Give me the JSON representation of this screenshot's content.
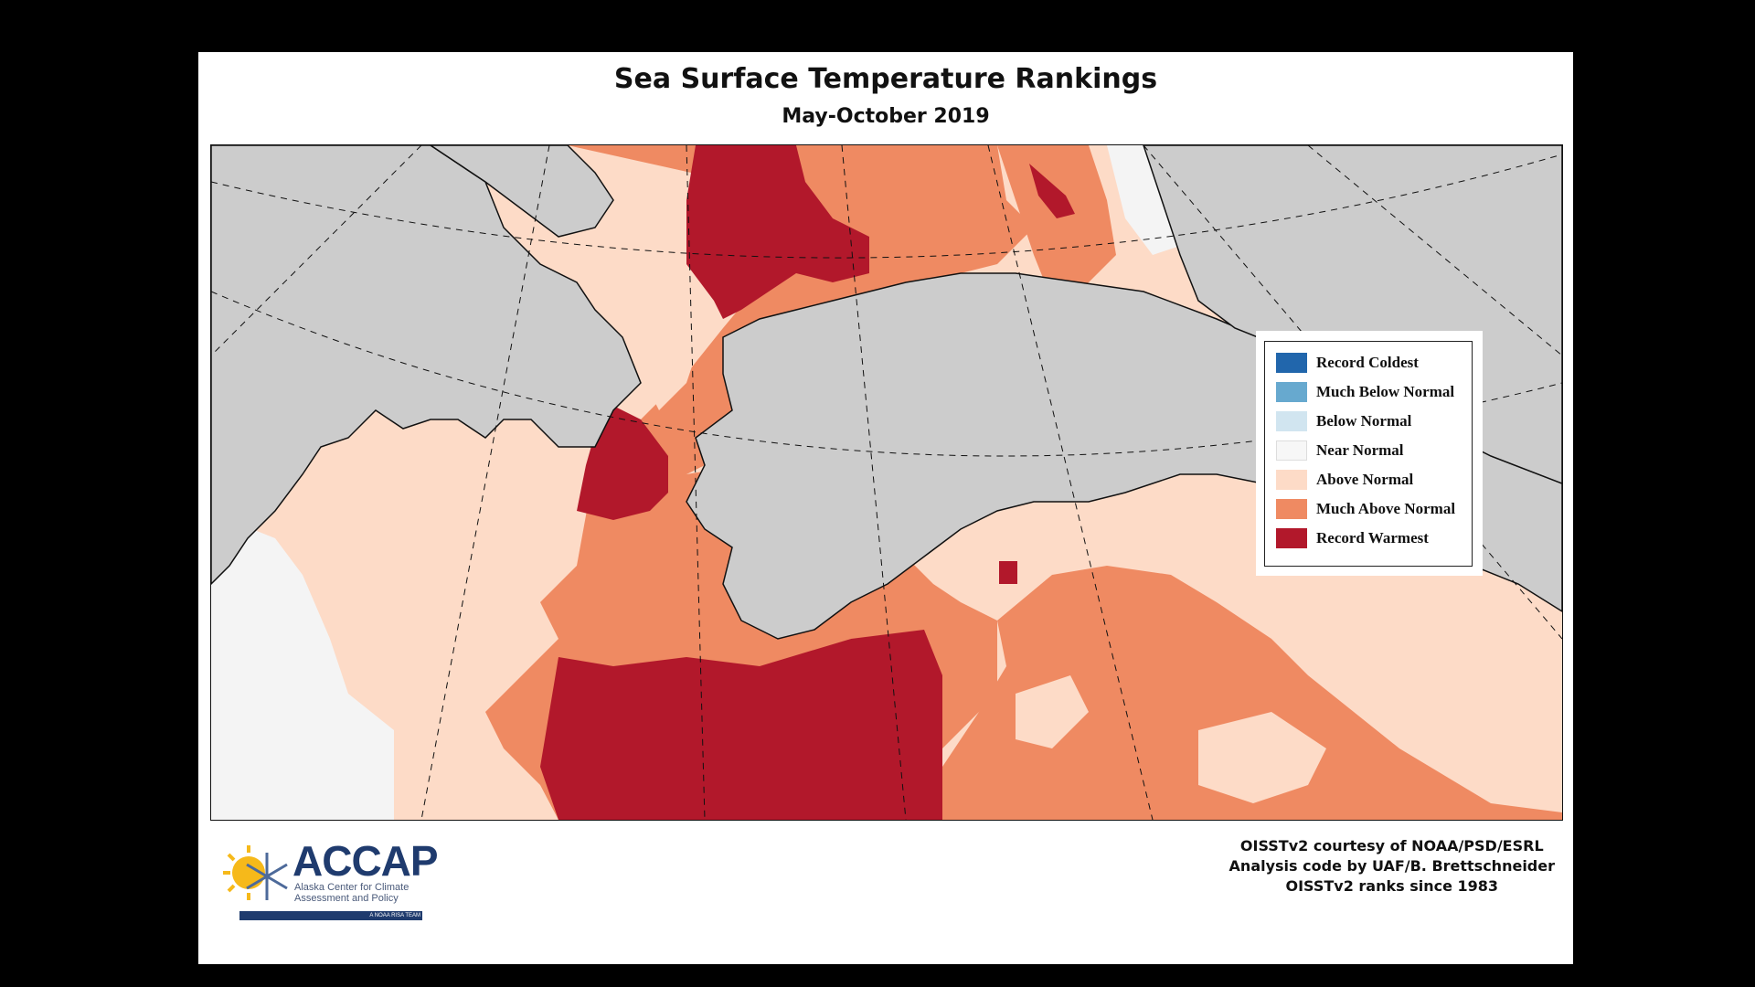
{
  "title": "Sea Surface Temperature Rankings",
  "subtitle": "May-October 2019",
  "legend": [
    {
      "label": "Record Coldest",
      "color": "#2166ac"
    },
    {
      "label": "Much Below Normal",
      "color": "#67a9cf"
    },
    {
      "label": "Below Normal",
      "color": "#d1e5f0"
    },
    {
      "label": "Near Normal",
      "color": "#f7f7f7"
    },
    {
      "label": "Above Normal",
      "color": "#fddbc7"
    },
    {
      "label": "Much Above Normal",
      "color": "#ef8a62"
    },
    {
      "label": "Record Warmest",
      "color": "#b2182b"
    }
  ],
  "colors": {
    "land": "#cccccc",
    "near_normal": "#f4f4f4",
    "above_normal": "#fddbc7",
    "much_above_normal": "#ef8a62",
    "record_warmest": "#b2182b"
  },
  "logo": {
    "acronym": "ACCAP",
    "full_name": "Alaska Center for Climate Assessment and Policy",
    "team": "A NOAA RISA TEAM"
  },
  "credits": [
    "OISSTv2 courtesy of NOAA/PSD/ESRL",
    "Analysis code by UAF/B. Brettschneider",
    "OISSTv2 ranks since 1983"
  ]
}
